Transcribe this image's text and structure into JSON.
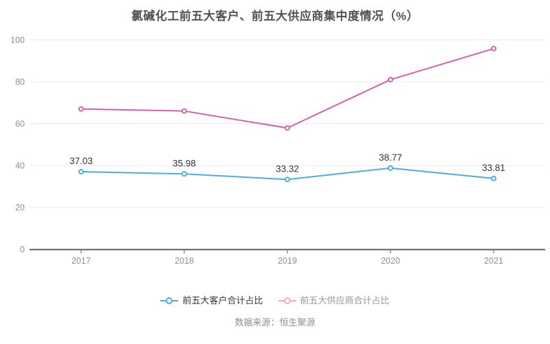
{
  "title": "氯碱化工前五大客户、前五大供应商集中度情况（%）",
  "source": "数据来源：恒生聚源",
  "colors": {
    "customers_line": "#49ade6",
    "suppliers_line": "#d85fa7",
    "suppliers_legend_marker": "#f0a9d3",
    "grid_line": "#e4e8f1",
    "axis_line": "#575c66",
    "axis_label": "#8b8e96",
    "data_label": "#333333",
    "title_text": "#525252",
    "source_text": "#8f8f8f"
  },
  "chart_data": {
    "type": "line",
    "title": "氯碱化工前五大客户、前五大供应商集中度情况（%）",
    "categories": [
      "2017",
      "2018",
      "2019",
      "2020",
      "2021"
    ],
    "series": [
      {
        "name": "前五大客户合计占比",
        "values": [
          37.03,
          35.98,
          33.32,
          38.77,
          33.81
        ],
        "color": "#49ade6",
        "labels_visible": true
      },
      {
        "name": "前五大供应商合计占比",
        "values": [
          67.0,
          66.0,
          57.9,
          81.0,
          95.8
        ],
        "color": "#d85fa7",
        "labels_visible": false
      }
    ],
    "xlabel": "",
    "ylabel": "",
    "ylim": [
      0,
      100
    ],
    "y_ticks": [
      0,
      20,
      40,
      60,
      80,
      100
    ],
    "grid": true,
    "legend_position": "bottom"
  },
  "legend": {
    "items": [
      {
        "label": "前五大客户合计占比",
        "marker_color": "#49ade6",
        "text_color": "#333333"
      },
      {
        "label": "前五大供应商合计占比",
        "marker_color": "#f0a9d3",
        "text_color": "#999999"
      }
    ]
  }
}
